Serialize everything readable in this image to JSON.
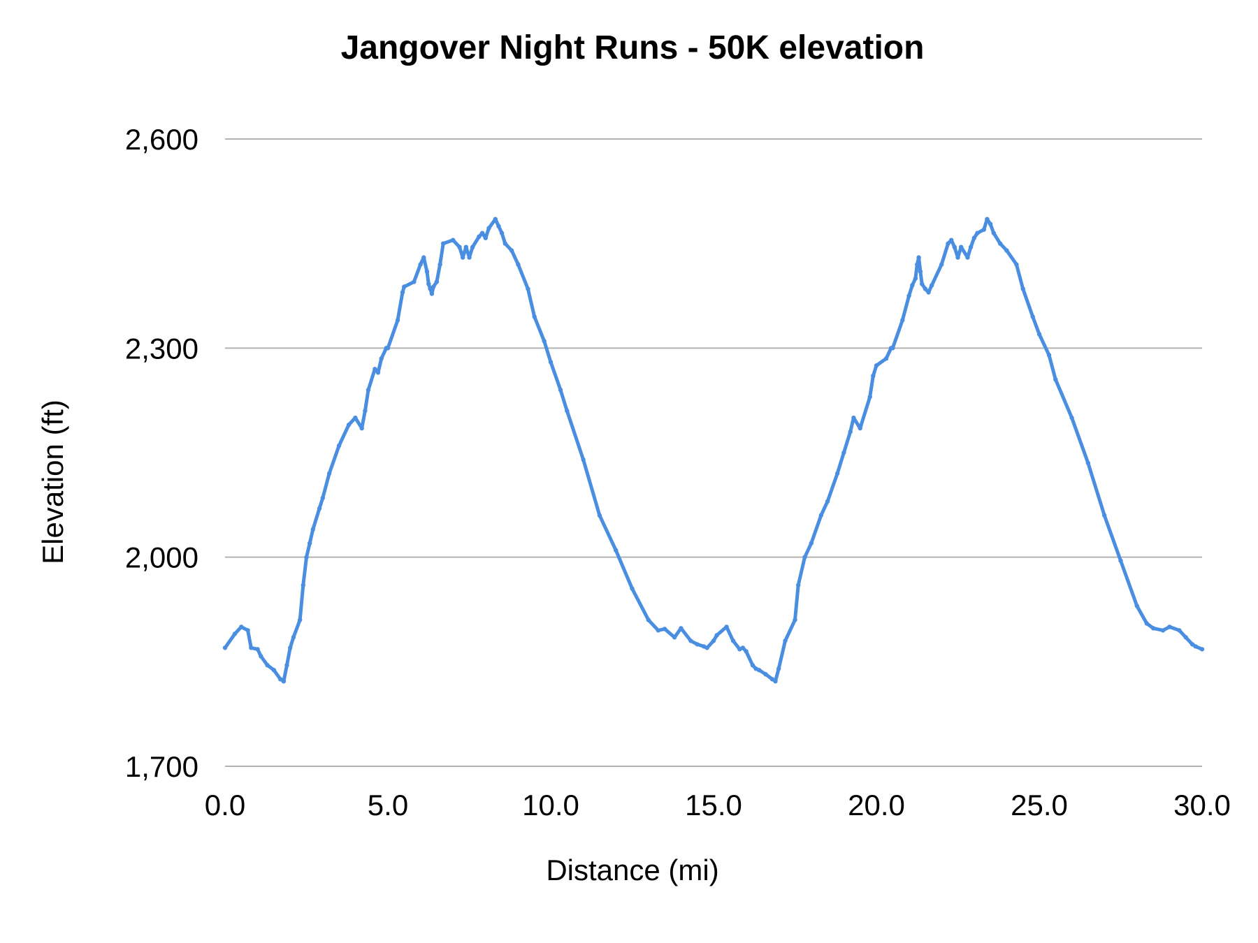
{
  "colors": {
    "series": "#4a8ee2",
    "grid": "#b3b3b3",
    "text": "#000000",
    "background": "#ffffff"
  },
  "chart_data": {
    "type": "line",
    "title": "Jangover Night Runs - 50K elevation",
    "xlabel": "Distance (mi)",
    "ylabel": "Elevation (ft)",
    "xlim": [
      0,
      30
    ],
    "ylim": [
      1700,
      2600
    ],
    "x_ticks": [
      "0.0",
      "5.0",
      "10.0",
      "15.0",
      "20.0",
      "25.0",
      "30.0"
    ],
    "y_ticks": [
      "1,700",
      "2,000",
      "2,300",
      "2,600"
    ],
    "grid": true,
    "legend": "none",
    "series": [
      {
        "x": [
          0.0,
          0.3,
          0.5,
          0.7,
          0.8,
          1.0,
          1.1,
          1.3,
          1.5,
          1.7,
          1.8,
          1.9,
          2.0,
          2.1,
          2.3,
          2.4,
          2.5,
          2.6,
          2.7,
          2.9,
          3.0,
          3.2,
          3.5,
          3.8,
          4.0,
          4.2,
          4.3,
          4.4,
          4.6,
          4.7,
          4.8,
          4.95,
          5.0,
          5.3,
          5.45,
          5.5,
          5.8,
          6.0,
          6.1,
          6.2,
          6.25,
          6.3,
          6.35,
          6.4,
          6.5,
          6.6,
          6.7,
          7.0,
          7.2,
          7.3,
          7.4,
          7.5,
          7.6,
          7.8,
          7.9,
          8.0,
          8.1,
          8.3,
          8.4,
          8.5,
          8.6,
          8.8,
          9.0,
          9.3,
          9.5,
          9.8,
          10.0,
          10.3,
          10.5,
          11.0,
          11.5,
          12.0,
          12.5,
          13.0,
          13.3,
          13.5,
          13.8,
          14.0,
          14.3,
          14.5,
          14.7,
          14.8,
          15.0,
          15.1,
          15.4,
          15.6,
          15.8,
          15.9,
          16.0,
          16.2,
          16.3,
          16.4,
          16.6,
          16.8,
          16.9,
          17.0,
          17.2,
          17.5,
          17.6,
          17.8,
          18.0,
          18.3,
          18.5,
          18.8,
          19.0,
          19.2,
          19.3,
          19.5,
          19.8,
          19.9,
          20.0,
          20.3,
          20.45,
          20.5,
          20.8,
          21.0,
          21.1,
          21.2,
          21.25,
          21.3,
          21.35,
          21.4,
          21.5,
          21.6,
          21.7,
          22.0,
          22.2,
          22.3,
          22.4,
          22.5,
          22.6,
          22.8,
          22.9,
          23.0,
          23.1,
          23.3,
          23.4,
          23.5,
          23.6,
          23.8,
          24.0,
          24.3,
          24.5,
          24.8,
          25.0,
          25.3,
          25.5,
          26.0,
          26.5,
          27.0,
          27.5,
          28.0,
          28.3,
          28.5,
          28.8,
          29.0,
          29.3,
          29.5,
          29.7,
          29.8,
          30.0
        ],
        "y": [
          1870,
          1890,
          1900,
          1895,
          1870,
          1868,
          1858,
          1845,
          1838,
          1825,
          1822,
          1845,
          1870,
          1885,
          1910,
          1960,
          2000,
          2020,
          2040,
          2070,
          2085,
          2120,
          2160,
          2190,
          2200,
          2185,
          2210,
          2240,
          2270,
          2265,
          2285,
          2300,
          2300,
          2340,
          2380,
          2388,
          2395,
          2420,
          2430,
          2410,
          2392,
          2385,
          2378,
          2388,
          2395,
          2420,
          2450,
          2455,
          2445,
          2430,
          2445,
          2430,
          2445,
          2460,
          2465,
          2458,
          2472,
          2485,
          2475,
          2465,
          2450,
          2440,
          2420,
          2385,
          2345,
          2310,
          2280,
          2240,
          2210,
          2140,
          2060,
          2010,
          1955,
          1910,
          1895,
          1897,
          1885,
          1898,
          1880,
          1875,
          1872,
          1870,
          1880,
          1888,
          1900,
          1880,
          1868,
          1870,
          1865,
          1845,
          1840,
          1838,
          1832,
          1825,
          1822,
          1840,
          1880,
          1910,
          1960,
          2000,
          2020,
          2060,
          2080,
          2120,
          2150,
          2180,
          2200,
          2185,
          2230,
          2260,
          2275,
          2285,
          2300,
          2300,
          2340,
          2375,
          2390,
          2400,
          2420,
          2430,
          2410,
          2392,
          2385,
          2380,
          2390,
          2420,
          2450,
          2455,
          2445,
          2430,
          2445,
          2430,
          2445,
          2458,
          2465,
          2470,
          2485,
          2478,
          2465,
          2450,
          2440,
          2420,
          2385,
          2345,
          2320,
          2290,
          2255,
          2200,
          2135,
          2060,
          1995,
          1930,
          1905,
          1898,
          1895,
          1900,
          1895,
          1885,
          1875,
          1872,
          1868
        ]
      }
    ]
  }
}
